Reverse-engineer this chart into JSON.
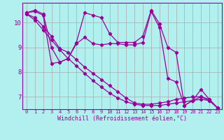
{
  "xlabel": "Windchill (Refroidissement éolien,°C)",
  "bg_color": "#b2f0f0",
  "grid_color": "#aaaaaa",
  "line_color": "#990099",
  "xlim": [
    -0.5,
    23.5
  ],
  "ylim": [
    6.5,
    10.8
  ],
  "yticks": [
    7,
    8,
    9,
    10
  ],
  "xticks": [
    0,
    1,
    2,
    3,
    4,
    5,
    6,
    7,
    8,
    9,
    10,
    11,
    12,
    13,
    14,
    15,
    16,
    17,
    18,
    19,
    20,
    21,
    22,
    23
  ],
  "series": [
    [
      10.4,
      10.5,
      10.35,
      9.0,
      8.4,
      8.55,
      9.2,
      10.4,
      10.3,
      10.2,
      9.55,
      9.2,
      9.2,
      9.2,
      9.45,
      10.5,
      9.95,
      9.0,
      8.8,
      6.65,
      6.85,
      7.3,
      6.9,
      6.55
    ],
    [
      10.4,
      10.45,
      10.3,
      8.35,
      8.4,
      8.55,
      9.15,
      9.4,
      9.15,
      9.1,
      9.15,
      9.15,
      9.1,
      9.1,
      9.2,
      10.45,
      9.8,
      7.75,
      7.6,
      6.65,
      6.85,
      7.0,
      6.85,
      6.55
    ],
    [
      10.35,
      10.2,
      9.85,
      9.45,
      8.95,
      8.8,
      8.5,
      8.2,
      7.95,
      7.7,
      7.45,
      7.2,
      6.95,
      6.75,
      6.7,
      6.7,
      6.75,
      6.8,
      6.9,
      6.95,
      7.0,
      7.0,
      6.9,
      6.55
    ],
    [
      10.35,
      10.1,
      9.7,
      9.3,
      8.9,
      8.55,
      8.25,
      7.95,
      7.65,
      7.4,
      7.15,
      6.95,
      6.8,
      6.7,
      6.65,
      6.65,
      6.65,
      6.7,
      6.75,
      6.8,
      6.85,
      6.9,
      6.85,
      6.55
    ]
  ]
}
